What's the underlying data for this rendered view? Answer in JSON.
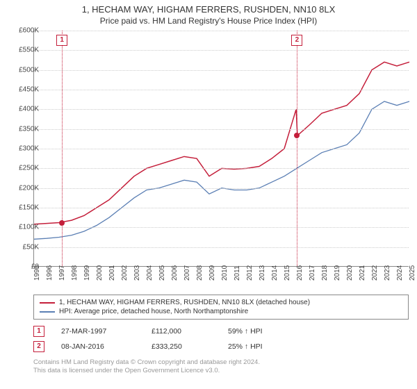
{
  "title": "1, HECHAM WAY, HIGHAM FERRERS, RUSHDEN, NN10 8LX",
  "subtitle": "Price paid vs. HM Land Registry's House Price Index (HPI)",
  "chart": {
    "type": "line",
    "background_color": "#ffffff",
    "grid_color": "#cccccc",
    "axis_color": "#888888",
    "ylim": [
      0,
      600000
    ],
    "ytick_step": 50000,
    "yticks": [
      "£0",
      "£50K",
      "£100K",
      "£150K",
      "£200K",
      "£250K",
      "£300K",
      "£350K",
      "£400K",
      "£450K",
      "£500K",
      "£550K",
      "£600K"
    ],
    "xlim": [
      1995,
      2025
    ],
    "xticks": [
      1995,
      1996,
      1997,
      1998,
      1999,
      2000,
      2001,
      2002,
      2003,
      2004,
      2005,
      2006,
      2007,
      2008,
      2009,
      2010,
      2011,
      2012,
      2013,
      2014,
      2015,
      2016,
      2017,
      2018,
      2019,
      2020,
      2021,
      2022,
      2023,
      2024,
      2025
    ],
    "title_fontsize": 13,
    "label_fontsize": 10,
    "series": [
      {
        "name": "price_paid",
        "label": "1, HECHAM WAY, HIGHAM FERRERS, RUSHDEN, NN10 8LX (detached house)",
        "color": "#c41e3a",
        "line_width": 1.5,
        "x": [
          1995,
          1996,
          1997,
          1998,
          1999,
          2000,
          2001,
          2002,
          2003,
          2004,
          2005,
          2006,
          2007,
          2008,
          2009,
          2010,
          2011,
          2012,
          2013,
          2014,
          2015,
          2015.95,
          2016.05,
          2017,
          2018,
          2019,
          2020,
          2021,
          2022,
          2023,
          2024,
          2025
        ],
        "y": [
          108000,
          110000,
          112000,
          118000,
          130000,
          150000,
          170000,
          200000,
          230000,
          250000,
          260000,
          270000,
          280000,
          275000,
          230000,
          250000,
          248000,
          250000,
          255000,
          275000,
          300000,
          400000,
          333250,
          360000,
          390000,
          400000,
          410000,
          440000,
          500000,
          520000,
          510000,
          520000
        ]
      },
      {
        "name": "hpi",
        "label": "HPI: Average price, detached house, North Northamptonshire",
        "color": "#5b7fb4",
        "line_width": 1.3,
        "x": [
          1995,
          1996,
          1997,
          1998,
          1999,
          2000,
          2001,
          2002,
          2003,
          2004,
          2005,
          2006,
          2007,
          2008,
          2009,
          2010,
          2011,
          2012,
          2013,
          2014,
          2015,
          2016,
          2017,
          2018,
          2019,
          2020,
          2021,
          2022,
          2023,
          2024,
          2025
        ],
        "y": [
          70000,
          72000,
          75000,
          80000,
          90000,
          105000,
          125000,
          150000,
          175000,
          195000,
          200000,
          210000,
          220000,
          215000,
          185000,
          200000,
          195000,
          195000,
          200000,
          215000,
          230000,
          250000,
          270000,
          290000,
          300000,
          310000,
          340000,
          400000,
          420000,
          410000,
          420000
        ]
      }
    ],
    "sale_markers": [
      {
        "id": "1",
        "year": 1997.23,
        "price": 112000,
        "color": "#c41e3a"
      },
      {
        "id": "2",
        "year": 2016.02,
        "price": 333250,
        "color": "#c41e3a"
      }
    ]
  },
  "legend": {
    "items": [
      {
        "color": "#c41e3a",
        "label": "1, HECHAM WAY, HIGHAM FERRERS, RUSHDEN, NN10 8LX (detached house)"
      },
      {
        "color": "#5b7fb4",
        "label": "HPI: Average price, detached house, North Northamptonshire"
      }
    ]
  },
  "sales_table": [
    {
      "marker": "1",
      "date": "27-MAR-1997",
      "price": "£112,000",
      "delta": "59% ↑ HPI"
    },
    {
      "marker": "2",
      "date": "08-JAN-2016",
      "price": "£333,250",
      "delta": "25% ↑ HPI"
    }
  ],
  "footer_line1": "Contains HM Land Registry data © Crown copyright and database right 2024.",
  "footer_line2": "This data is licensed under the Open Government Licence v3.0."
}
